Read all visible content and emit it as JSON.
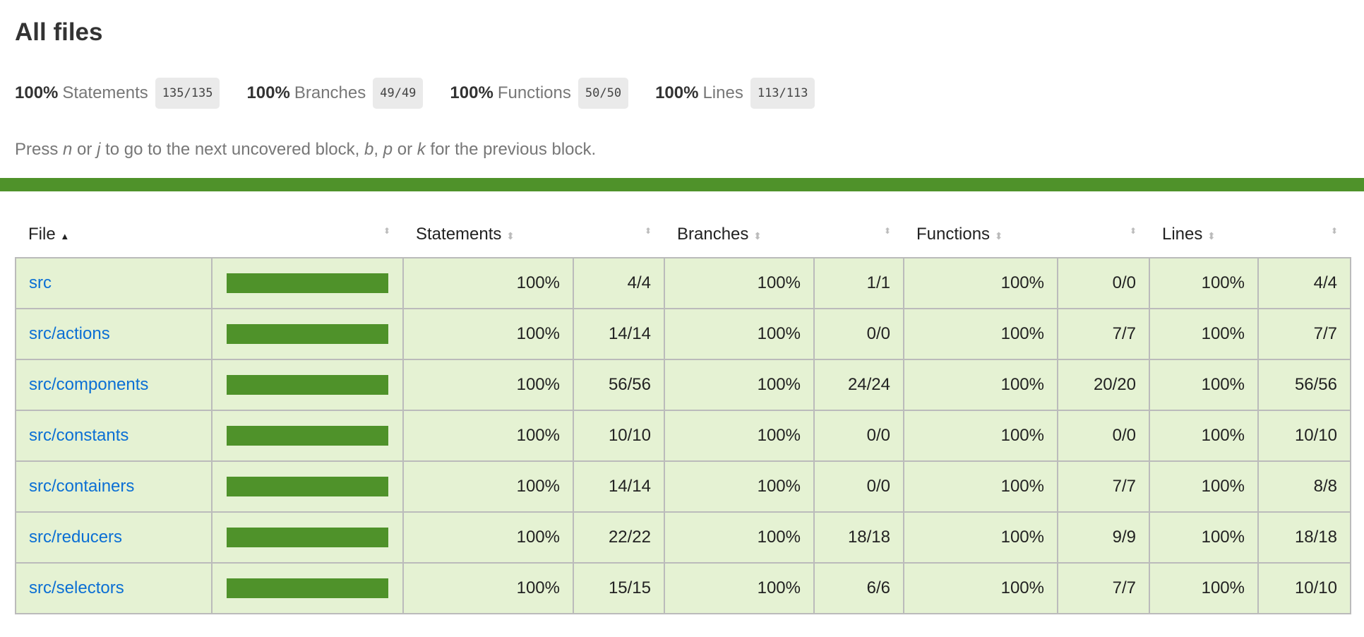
{
  "title": "All files",
  "stats": [
    {
      "pct": "100%",
      "label": "Statements",
      "fraction": "135/135"
    },
    {
      "pct": "100%",
      "label": "Branches",
      "fraction": "49/49"
    },
    {
      "pct": "100%",
      "label": "Functions",
      "fraction": "50/50"
    },
    {
      "pct": "100%",
      "label": "Lines",
      "fraction": "113/113"
    }
  ],
  "hint": {
    "pre": "Press ",
    "n": "n",
    "or1": " or ",
    "j": "j",
    "mid": " to go to the next uncovered block, ",
    "b": "b",
    "comma": ", ",
    "p": "p",
    "or2": " or ",
    "k": "k",
    "post": " for the previous block."
  },
  "status_color": "#4f922a",
  "headers": {
    "file": "File",
    "sort_asc": "▲",
    "sort": "⬍",
    "statements": "Statements",
    "branches": "Branches",
    "functions": "Functions",
    "lines": "Lines"
  },
  "rows": [
    {
      "file": "src",
      "coverage": 100,
      "s_pct": "100%",
      "s": "4/4",
      "b_pct": "100%",
      "b": "1/1",
      "f_pct": "100%",
      "f": "0/0",
      "l_pct": "100%",
      "l": "4/4"
    },
    {
      "file": "src/actions",
      "coverage": 100,
      "s_pct": "100%",
      "s": "14/14",
      "b_pct": "100%",
      "b": "0/0",
      "f_pct": "100%",
      "f": "7/7",
      "l_pct": "100%",
      "l": "7/7"
    },
    {
      "file": "src/components",
      "coverage": 100,
      "s_pct": "100%",
      "s": "56/56",
      "b_pct": "100%",
      "b": "24/24",
      "f_pct": "100%",
      "f": "20/20",
      "l_pct": "100%",
      "l": "56/56"
    },
    {
      "file": "src/constants",
      "coverage": 100,
      "s_pct": "100%",
      "s": "10/10",
      "b_pct": "100%",
      "b": "0/0",
      "f_pct": "100%",
      "f": "0/0",
      "l_pct": "100%",
      "l": "10/10"
    },
    {
      "file": "src/containers",
      "coverage": 100,
      "s_pct": "100%",
      "s": "14/14",
      "b_pct": "100%",
      "b": "0/0",
      "f_pct": "100%",
      "f": "7/7",
      "l_pct": "100%",
      "l": "8/8"
    },
    {
      "file": "src/reducers",
      "coverage": 100,
      "s_pct": "100%",
      "s": "22/22",
      "b_pct": "100%",
      "b": "18/18",
      "f_pct": "100%",
      "f": "9/9",
      "l_pct": "100%",
      "l": "18/18"
    },
    {
      "file": "src/selectors",
      "coverage": 100,
      "s_pct": "100%",
      "s": "15/15",
      "b_pct": "100%",
      "b": "6/6",
      "f_pct": "100%",
      "f": "7/7",
      "l_pct": "100%",
      "l": "10/10"
    }
  ]
}
